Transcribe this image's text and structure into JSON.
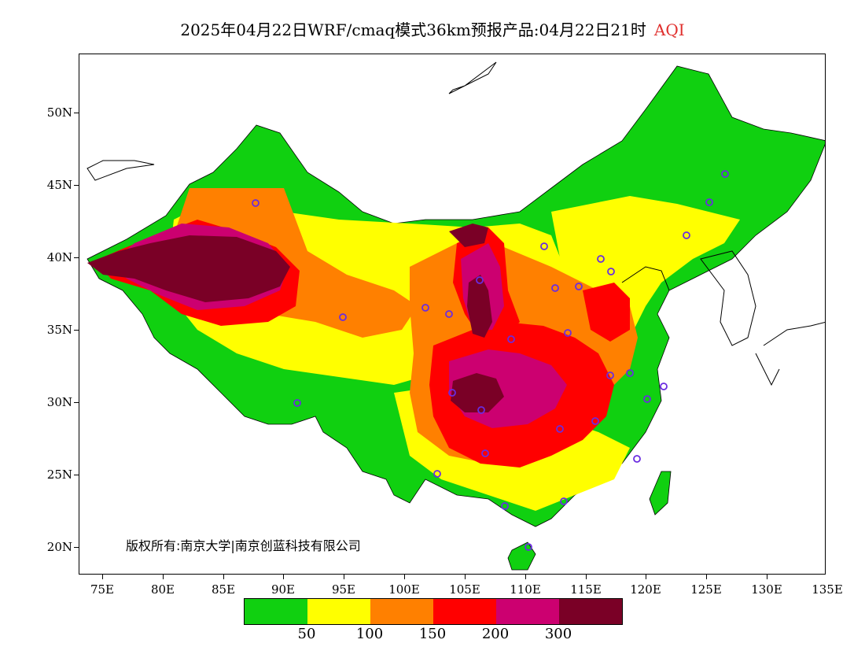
{
  "title": {
    "main": "2025年04月22日WRF/cmaq模式36km预报产品:04月22日21时",
    "variable": "AQI"
  },
  "axes": {
    "y_labels": [
      "50N",
      "45N",
      "40N",
      "35N",
      "30N",
      "25N",
      "20N"
    ],
    "x_labels": [
      "75E",
      "80E",
      "85E",
      "90E",
      "95E",
      "100E",
      "105E",
      "110E",
      "115E",
      "120E",
      "125E",
      "130E",
      "135E"
    ]
  },
  "copyright": "版权所有:南京大学|南京创蓝科技有限公司",
  "legend": {
    "colors": [
      "#10d010",
      "#ffff00",
      "#ff8000",
      "#ff0000",
      "#cc0070",
      "#7a0026"
    ],
    "labels": [
      "50",
      "100",
      "150",
      "200",
      "300"
    ]
  }
}
